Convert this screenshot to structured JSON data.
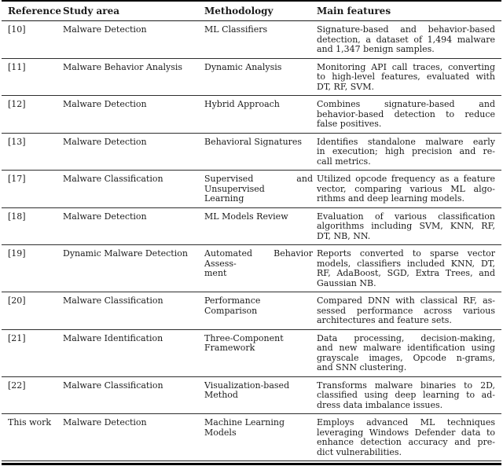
{
  "table": {
    "columns": [
      {
        "label": "Reference"
      },
      {
        "label": "Study area"
      },
      {
        "label": "Methodology"
      },
      {
        "label": "Main features"
      }
    ],
    "rows": [
      {
        "ref": "[10]",
        "area": "Malware Detection",
        "method": "ML Classifiers",
        "features": [
          "Signature-based and behavior-based",
          "detection, a dataset of 1,494 malware",
          "and 1,347 benign samples."
        ]
      },
      {
        "ref": "[11]",
        "area": "Malware Behavior Analysis",
        "method": "Dynamic Analysis",
        "features": [
          "Monitoring API call traces, converting",
          "to high-level features, evaluated with",
          "DT, RF, SVM."
        ]
      },
      {
        "ref": "[12]",
        "area": "Malware Detection",
        "method": "Hybrid Approach",
        "features": [
          "Combines signature-based and",
          "behavior-based detection to reduce",
          "false positives."
        ]
      },
      {
        "ref": "[13]",
        "area": "Malware Detection",
        "method": "Behavioral Signatures",
        "features": [
          "Identifies standalone malware early",
          "in execution; high precision and re-",
          "call metrics."
        ]
      },
      {
        "ref": "[17]",
        "area": "Malware Classification",
        "method": [
          "Supervised and Unsupervised",
          "Learning"
        ],
        "features": [
          "Utilized opcode frequency as a feature",
          "vector, comparing various ML algo-",
          "rithms and deep learning models."
        ]
      },
      {
        "ref": "[18]",
        "area": "Malware Detection",
        "method": "ML Models Review",
        "features": [
          "Evaluation of various classification",
          "algorithms including SVM, KNN, RF,",
          "DT, NB, NN."
        ]
      },
      {
        "ref": "[19]",
        "area": "Dynamic Malware Detection",
        "method": [
          "Automated Behavior Assess-",
          "ment"
        ],
        "features": [
          "Reports converted to sparse vector",
          "models, classifiers included KNN, DT,",
          "RF, AdaBoost, SGD, Extra Trees, and",
          "Gaussian NB."
        ]
      },
      {
        "ref": "[20]",
        "area": "Malware Classification",
        "method": "Performance Comparison",
        "features": [
          "Compared DNN with classical RF, as-",
          "sessed performance across various",
          "architectures and feature sets."
        ]
      },
      {
        "ref": "[21]",
        "area": "Malware Identification",
        "method": "Three-Component Framework",
        "features": [
          "Data processing, decision-making,",
          "and new malware identification using",
          "grayscale images, Opcode n-grams,",
          "and SNN clustering."
        ]
      },
      {
        "ref": "[22]",
        "area": "Malware Classification",
        "method": "Visualization-based Method",
        "features": [
          "Transforms malware binaries to 2D,",
          "classified using deep learning to ad-",
          "dress data imbalance issues."
        ]
      },
      {
        "ref": "This work",
        "area": "Malware Detection",
        "method": "Machine Learning Models",
        "features": [
          "Employs advanced ML techniques",
          "leveraging Windows Defender data to",
          "enhance detection accuracy and pre-",
          "dict vulnerabilities."
        ]
      }
    ]
  }
}
